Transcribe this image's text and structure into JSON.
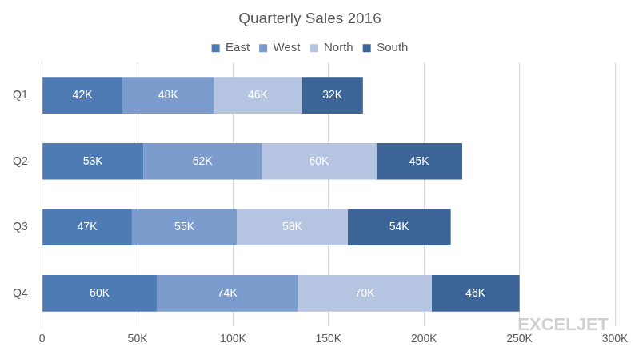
{
  "chart_data": {
    "type": "bar",
    "title": "Quarterly Sales 2016",
    "orientation": "horizontal",
    "stacked": true,
    "data_labels": true,
    "grid": true,
    "legend": "top",
    "categories": [
      "Q1",
      "Q2",
      "Q3",
      "Q4"
    ],
    "series": [
      {
        "name": "East",
        "color": "#4f7bb5",
        "values": [
          42000,
          53000,
          47000,
          60000
        ],
        "value_labels": [
          "42K",
          "53K",
          "47K",
          "60K"
        ]
      },
      {
        "name": "West",
        "color": "#7d9cce",
        "values": [
          48000,
          62000,
          55000,
          74000
        ],
        "value_labels": [
          "48K",
          "62K",
          "55K",
          "74K"
        ]
      },
      {
        "name": "North",
        "color": "#b5c4e0",
        "values": [
          46000,
          60000,
          58000,
          70000
        ],
        "value_labels": [
          "46K",
          "60K",
          "58K",
          "70K"
        ]
      },
      {
        "name": "South",
        "color": "#3c6496",
        "values": [
          32000,
          45000,
          54000,
          46000
        ],
        "value_labels": [
          "32K",
          "45K",
          "54K",
          "46K"
        ]
      }
    ],
    "xlim": [
      0,
      300000
    ],
    "xticks": [
      0,
      {
        "value": 50000,
        "label": "50K"
      },
      {
        "value": 100000,
        "label": "100K"
      },
      {
        "value": 150000,
        "label": "150K"
      },
      {
        "value": 200000,
        "label": "200K"
      },
      {
        "value": 250000,
        "label": "250K"
      },
      {
        "value": 300000,
        "label": "300K"
      }
    ],
    "annotations": [
      "EXCELJET"
    ]
  }
}
